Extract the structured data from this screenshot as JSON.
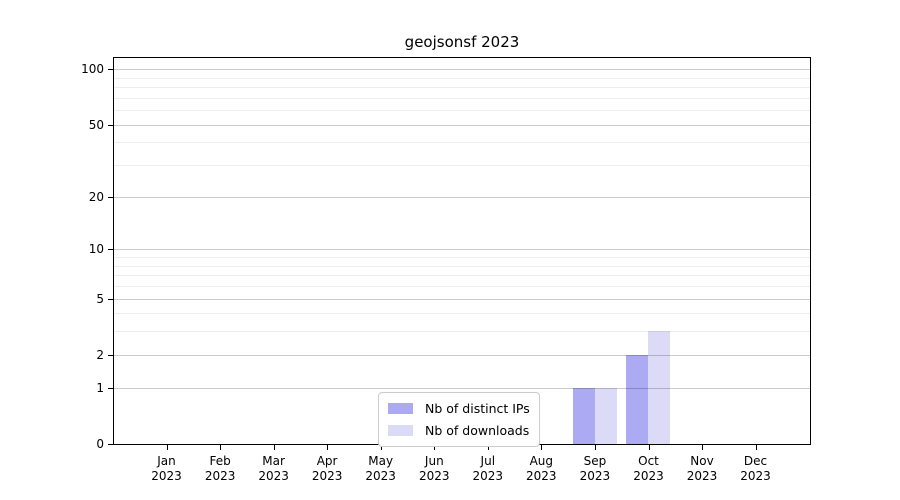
{
  "figure": {
    "background": "#ffffff"
  },
  "chart_data": {
    "type": "bar",
    "title": "geojsonsf 2023",
    "x_axis": {
      "months": [
        "Jan",
        "Feb",
        "Mar",
        "Apr",
        "May",
        "Jun",
        "Jul",
        "Aug",
        "Sep",
        "Oct",
        "Nov",
        "Dec"
      ],
      "year": "2023"
    },
    "y_axis": {
      "scale": "log1p",
      "ticks": [
        100,
        50,
        20,
        10,
        5,
        2,
        1,
        0
      ],
      "minor_ticks": [
        90,
        80,
        70,
        60,
        40,
        30,
        9,
        8,
        7,
        6,
        4,
        3
      ],
      "range": [
        0,
        117
      ],
      "grid": true
    },
    "series": [
      {
        "name": "Nb of distinct IPs",
        "color": "#abaaf2",
        "values": [
          0,
          0,
          0,
          0,
          0,
          0,
          0,
          0,
          1,
          2,
          0,
          0
        ]
      },
      {
        "name": "Nb of downloads",
        "color": "#dbdbf8",
        "values": [
          0,
          0,
          0,
          0,
          0,
          0,
          0,
          0,
          1,
          3,
          0,
          0
        ]
      }
    ],
    "legend": {
      "position": "bottom-center",
      "entries": [
        "Nb of distinct IPs",
        "Nb of downloads"
      ]
    },
    "colors": {
      "axis": "#000000",
      "grid_major": "#cccccc",
      "grid_minor": "#ededed",
      "legend_border": "#cccccc"
    }
  }
}
